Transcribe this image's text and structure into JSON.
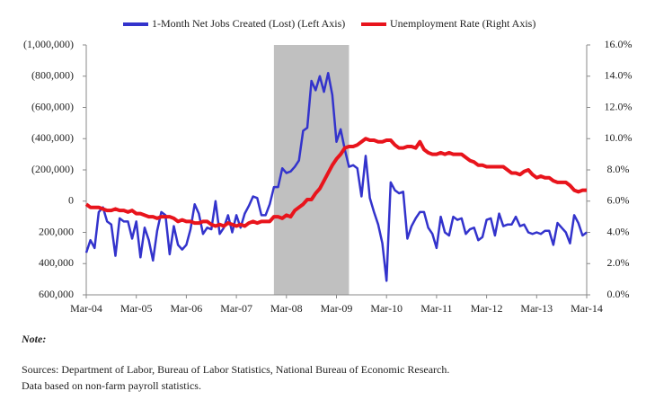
{
  "chart_data": {
    "type": "line",
    "categories": [
      "Mar-04",
      null,
      null,
      null,
      null,
      null,
      null,
      null,
      null,
      null,
      null,
      null,
      "Mar-05",
      null,
      null,
      null,
      null,
      null,
      null,
      null,
      null,
      null,
      null,
      null,
      "Mar-06",
      null,
      null,
      null,
      null,
      null,
      null,
      null,
      null,
      null,
      null,
      null,
      "Mar-07",
      null,
      null,
      null,
      null,
      null,
      null,
      null,
      null,
      null,
      null,
      null,
      "Mar-08",
      null,
      null,
      null,
      null,
      null,
      null,
      null,
      null,
      null,
      null,
      null,
      "Mar-09",
      null,
      null,
      null,
      null,
      null,
      null,
      null,
      null,
      null,
      null,
      null,
      "Mar-10",
      null,
      null,
      null,
      null,
      null,
      null,
      null,
      null,
      null,
      null,
      null,
      "Mar-11",
      null,
      null,
      null,
      null,
      null,
      null,
      null,
      null,
      null,
      null,
      null,
      "Mar-12",
      null,
      null,
      null,
      null,
      null,
      null,
      null,
      null,
      null,
      null,
      null,
      "Mar-13",
      null,
      null,
      null,
      null,
      null,
      null,
      null,
      null,
      null,
      null,
      null,
      "Mar-14"
    ],
    "series": [
      {
        "name": "1-Month Net Jobs Created (Lost) (Left Axis)",
        "color": "#3333cc",
        "axis": "y",
        "values": [
          330000,
          250000,
          300000,
          70000,
          40000,
          130000,
          150000,
          350000,
          110000,
          130000,
          130000,
          240000,
          130000,
          360000,
          170000,
          250000,
          380000,
          190000,
          70000,
          90000,
          340000,
          160000,
          280000,
          310000,
          280000,
          180000,
          20000,
          80000,
          210000,
          170000,
          180000,
          0,
          210000,
          170000,
          90000,
          200000,
          90000,
          170000,
          80000,
          30000,
          -30000,
          -20000,
          90000,
          90000,
          20000,
          -90000,
          -90000,
          -210000,
          -180000,
          -190000,
          -220000,
          -260000,
          -450000,
          -470000,
          -770000,
          -710000,
          -800000,
          -700000,
          -820000,
          -680000,
          -380000,
          -460000,
          -330000,
          -220000,
          -230000,
          -210000,
          -30000,
          -290000,
          -20000,
          70000,
          150000,
          270000,
          510000,
          -120000,
          -70000,
          -50000,
          -60000,
          240000,
          160000,
          110000,
          70000,
          70000,
          170000,
          210000,
          300000,
          100000,
          200000,
          220000,
          100000,
          120000,
          110000,
          210000,
          180000,
          170000,
          250000,
          230000,
          120000,
          110000,
          220000,
          80000,
          160000,
          150000,
          150000,
          100000,
          160000,
          150000,
          200000,
          210000,
          200000,
          210000,
          190000,
          190000,
          280000,
          140000,
          170000,
          200000,
          270000,
          90000,
          140000,
          220000,
          200000
        ]
      },
      {
        "name": "Unemployment Rate (Right Axis)",
        "color": "#e8141c",
        "axis": "y2",
        "values": [
          5.8,
          5.6,
          5.6,
          5.6,
          5.5,
          5.4,
          5.4,
          5.5,
          5.4,
          5.4,
          5.3,
          5.4,
          5.2,
          5.2,
          5.1,
          5.0,
          5.0,
          4.9,
          5.0,
          5.0,
          5.0,
          4.9,
          4.7,
          4.8,
          4.7,
          4.7,
          4.6,
          4.6,
          4.7,
          4.7,
          4.5,
          4.4,
          4.5,
          4.4,
          4.6,
          4.5,
          4.4,
          4.5,
          4.4,
          4.6,
          4.7,
          4.6,
          4.7,
          4.7,
          4.7,
          5.0,
          5.0,
          4.9,
          5.1,
          5.0,
          5.4,
          5.6,
          5.8,
          6.1,
          6.1,
          6.5,
          6.8,
          7.3,
          7.8,
          8.3,
          8.7,
          9.0,
          9.4,
          9.5,
          9.5,
          9.6,
          9.8,
          10.0,
          9.9,
          9.9,
          9.8,
          9.8,
          9.9,
          9.9,
          9.6,
          9.4,
          9.4,
          9.5,
          9.5,
          9.4,
          9.8,
          9.3,
          9.1,
          9.0,
          9.0,
          9.1,
          9.0,
          9.1,
          9.0,
          9.0,
          9.0,
          8.8,
          8.6,
          8.5,
          8.3,
          8.3,
          8.2,
          8.2,
          8.2,
          8.2,
          8.2,
          8.0,
          7.8,
          7.8,
          7.7,
          7.9,
          8.0,
          7.7,
          7.5,
          7.6,
          7.5,
          7.5,
          7.3,
          7.2,
          7.2,
          7.2,
          7.0,
          6.7,
          6.6,
          6.7,
          6.7
        ]
      }
    ],
    "ylim": [
      600000,
      -1000000
    ],
    "yticks": [
      {
        "value": -1000000,
        "label": "(1,000,000)"
      },
      {
        "value": -800000,
        "label": "(800,000)"
      },
      {
        "value": -600000,
        "label": "(600,000)"
      },
      {
        "value": -400000,
        "label": "(400,000)"
      },
      {
        "value": -200000,
        "label": "(200,000)"
      },
      0,
      {
        "value": 200000,
        "label": "200,000"
      },
      {
        "value": 400000,
        "label": "400,000"
      },
      {
        "value": 600000,
        "label": "600,000"
      }
    ],
    "y2lim": [
      0,
      16
    ],
    "y2ticks": [
      {
        "value": 0,
        "label": "0.0%"
      },
      {
        "value": 2,
        "label": "2.0%"
      },
      {
        "value": 4,
        "label": "4.0%"
      },
      {
        "value": 6,
        "label": "6.0%"
      },
      {
        "value": 8,
        "label": "8.0%"
      },
      {
        "value": 10,
        "label": "10.0%"
      },
      {
        "value": 12,
        "label": "12.0%"
      },
      {
        "value": 14,
        "label": "14.0%"
      },
      {
        "value": 16,
        "label": "16.0%"
      }
    ],
    "recession": {
      "start": 45,
      "end": 63,
      "color": "#c0c0c0"
    },
    "grid": false,
    "legend": "top",
    "note": "Note:",
    "sources": [
      "Sources: Department of Labor, Bureau of Labor Statistics, National Bureau of Economic Research.",
      "Data based on non-farm payroll statistics."
    ]
  }
}
